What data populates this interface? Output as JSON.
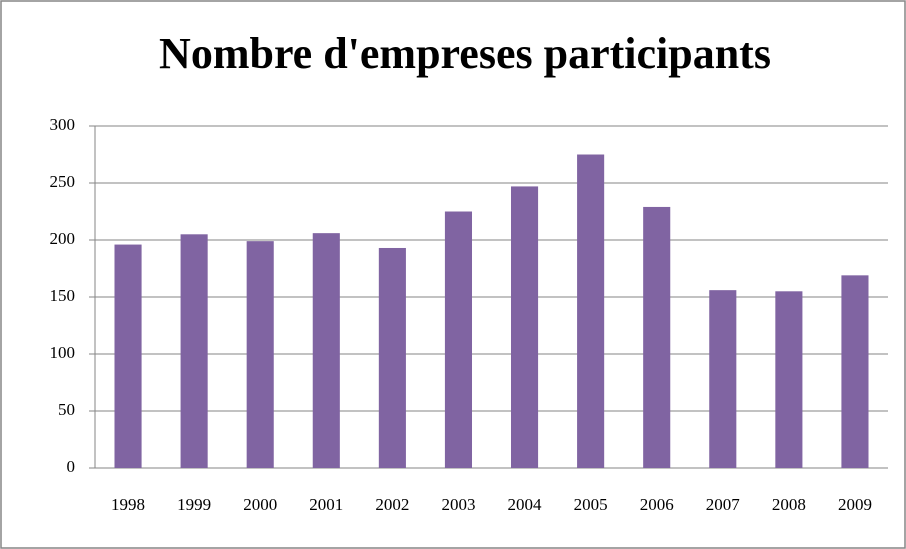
{
  "chart_data": {
    "type": "bar",
    "title": "Nombre d'empreses participants",
    "categories": [
      "1998",
      "1999",
      "2000",
      "2001",
      "2002",
      "2003",
      "2004",
      "2005",
      "2006",
      "2007",
      "2008",
      "2009"
    ],
    "values": [
      196,
      205,
      199,
      206,
      193,
      225,
      247,
      275,
      229,
      156,
      155,
      169
    ],
    "color": "#8064a2",
    "ylim": [
      0,
      300
    ],
    "yticks": [
      0,
      50,
      100,
      150,
      200,
      250,
      300
    ],
    "grid": true
  }
}
